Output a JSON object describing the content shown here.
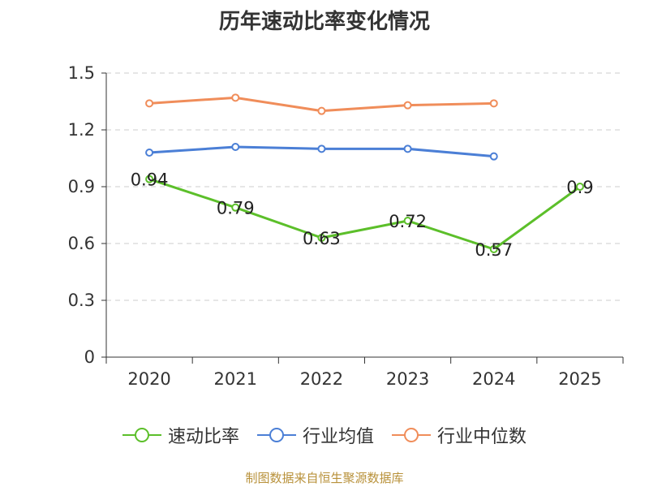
{
  "chart_data": {
    "type": "line",
    "title": "历年速动比率变化情况",
    "categories": [
      "2020",
      "2021",
      "2022",
      "2023",
      "2024",
      "2025"
    ],
    "ylim": [
      0,
      1.5
    ],
    "yticks": [
      "0",
      "0.3",
      "0.6",
      "0.9",
      "1.2",
      "1.5"
    ],
    "ytick_values": [
      0,
      0.3,
      0.6,
      0.9,
      1.2,
      1.5
    ],
    "grid": true,
    "legend_position": "bottom",
    "series": [
      {
        "name": "速动比率",
        "color": "#5cbf2a",
        "values": [
          0.94,
          0.79,
          0.63,
          0.72,
          0.57,
          0.9
        ],
        "labels": [
          "0.94",
          "0.79",
          "0.63",
          "0.72",
          "0.57",
          "0.9"
        ],
        "show_labels": true
      },
      {
        "name": "行业均值",
        "color": "#4b7fd6",
        "values": [
          1.08,
          1.11,
          1.1,
          1.1,
          1.06,
          null
        ],
        "show_labels": false
      },
      {
        "name": "行业中位数",
        "color": "#f08d5a",
        "values": [
          1.34,
          1.37,
          1.3,
          1.33,
          1.34,
          null
        ],
        "show_labels": false
      }
    ]
  },
  "source": "制图数据来自恒生聚源数据库"
}
